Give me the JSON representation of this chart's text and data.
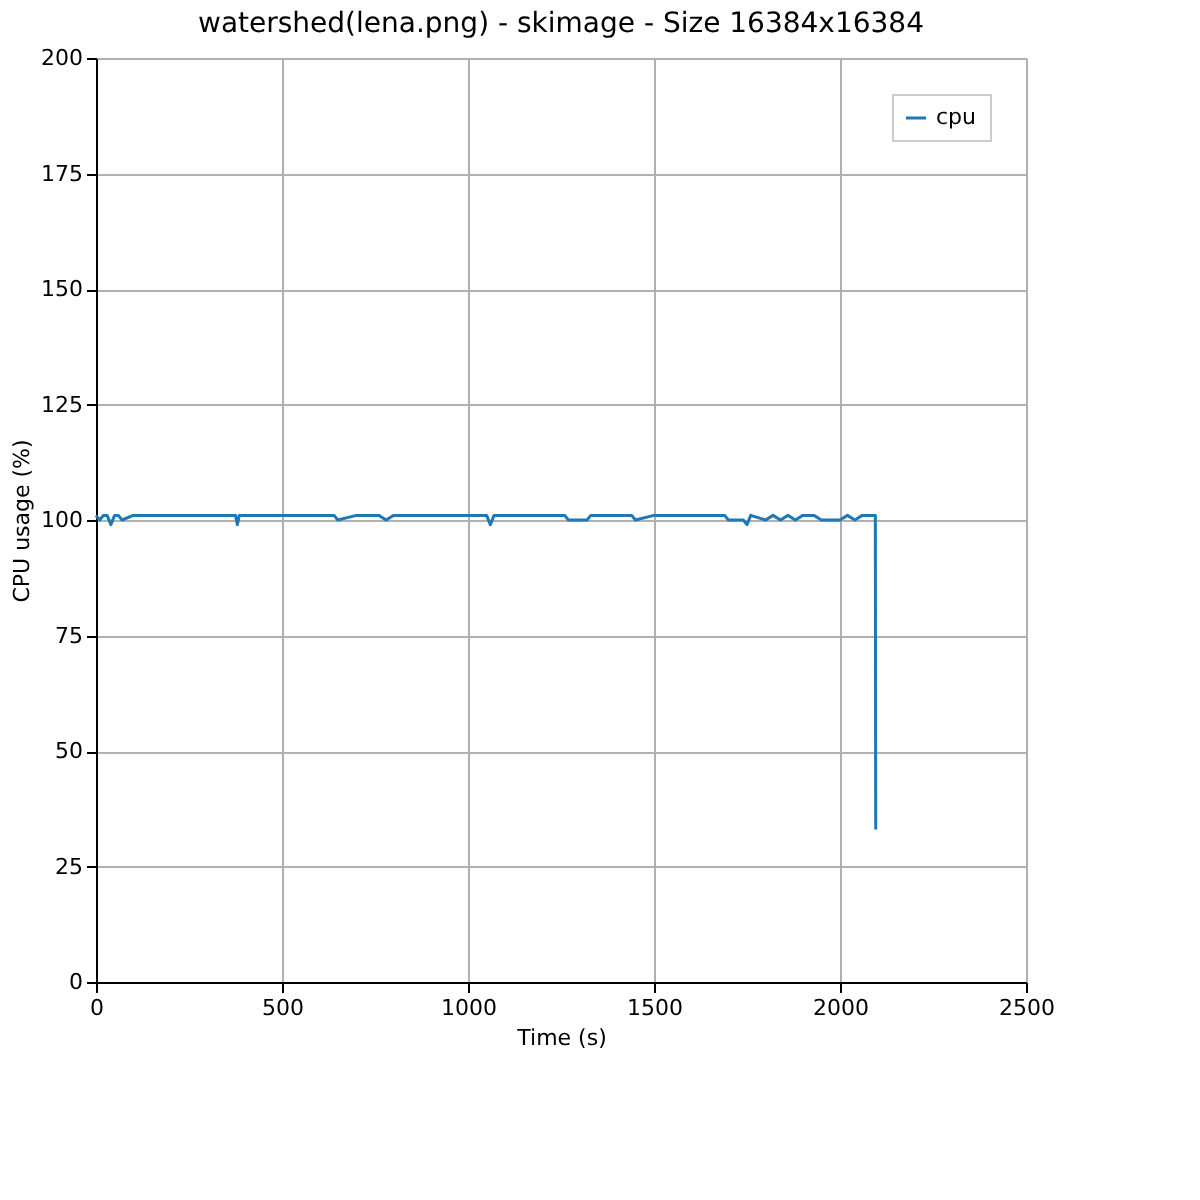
{
  "chart_data": {
    "type": "line",
    "title": "watershed(lena.png) - skimage - Size 16384x16384",
    "xlabel": "Time (s)",
    "ylabel": "CPU usage (%)",
    "xlim": [
      0,
      2500
    ],
    "ylim": [
      0,
      200
    ],
    "xticks": [
      0,
      500,
      1000,
      1500,
      2000,
      2500
    ],
    "yticks": [
      0,
      25,
      50,
      75,
      100,
      125,
      150,
      175,
      200
    ],
    "grid": true,
    "legend": "top right",
    "line_style": "solid",
    "marker": "none",
    "series": [
      {
        "name": "cpu",
        "color": "#1f77b4",
        "x": [
          0,
          10,
          20,
          30,
          40,
          50,
          60,
          70,
          100,
          150,
          200,
          250,
          300,
          350,
          375,
          380,
          385,
          400,
          450,
          500,
          550,
          600,
          640,
          650,
          700,
          760,
          780,
          800,
          850,
          900,
          950,
          1000,
          1050,
          1060,
          1070,
          1100,
          1150,
          1200,
          1260,
          1270,
          1320,
          1330,
          1400,
          1440,
          1450,
          1500,
          1550,
          1600,
          1650,
          1690,
          1700,
          1740,
          1750,
          1760,
          1800,
          1820,
          1840,
          1860,
          1880,
          1900,
          1930,
          1950,
          2000,
          2020,
          2040,
          2060,
          2090,
          2095,
          2096
        ],
        "values": [
          101,
          100,
          101,
          101,
          99,
          101,
          101,
          100,
          101,
          101,
          101,
          101,
          101,
          101,
          101,
          99,
          101,
          101,
          101,
          101,
          101,
          101,
          101,
          100,
          101,
          101,
          100,
          101,
          101,
          101,
          101,
          101,
          101,
          99,
          101,
          101,
          101,
          101,
          101,
          100,
          100,
          101,
          101,
          101,
          100,
          101,
          101,
          101,
          101,
          101,
          100,
          100,
          99,
          101,
          100,
          101,
          100,
          101,
          100,
          101,
          101,
          100,
          100,
          101,
          100,
          101,
          101,
          101,
          33
        ]
      }
    ]
  }
}
